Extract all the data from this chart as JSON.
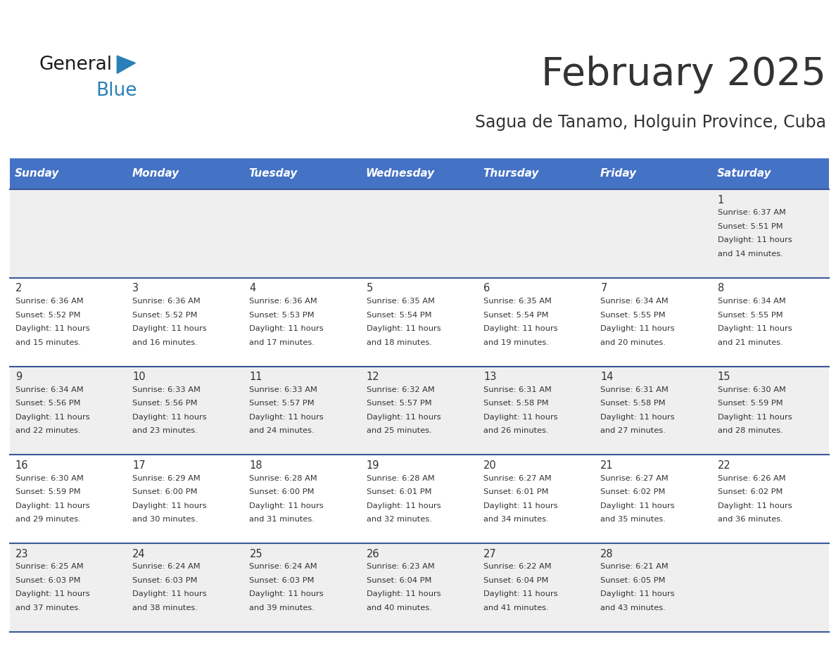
{
  "title": "February 2025",
  "subtitle": "Sagua de Tanamo, Holguin Province, Cuba",
  "header_bg": "#4472C4",
  "header_text": "#FFFFFF",
  "row_bg_odd": "#EFEFEF",
  "row_bg_even": "#FFFFFF",
  "text_color": "#333333",
  "day_number_color": "#333333",
  "separator_color": "#3B5998",
  "days_of_week": [
    "Sunday",
    "Monday",
    "Tuesday",
    "Wednesday",
    "Thursday",
    "Friday",
    "Saturday"
  ],
  "calendar": [
    [
      {
        "day": "",
        "info": ""
      },
      {
        "day": "",
        "info": ""
      },
      {
        "day": "",
        "info": ""
      },
      {
        "day": "",
        "info": ""
      },
      {
        "day": "",
        "info": ""
      },
      {
        "day": "",
        "info": ""
      },
      {
        "day": "1",
        "info": "Sunrise: 6:37 AM\nSunset: 5:51 PM\nDaylight: 11 hours\nand 14 minutes."
      }
    ],
    [
      {
        "day": "2",
        "info": "Sunrise: 6:36 AM\nSunset: 5:52 PM\nDaylight: 11 hours\nand 15 minutes."
      },
      {
        "day": "3",
        "info": "Sunrise: 6:36 AM\nSunset: 5:52 PM\nDaylight: 11 hours\nand 16 minutes."
      },
      {
        "day": "4",
        "info": "Sunrise: 6:36 AM\nSunset: 5:53 PM\nDaylight: 11 hours\nand 17 minutes."
      },
      {
        "day": "5",
        "info": "Sunrise: 6:35 AM\nSunset: 5:54 PM\nDaylight: 11 hours\nand 18 minutes."
      },
      {
        "day": "6",
        "info": "Sunrise: 6:35 AM\nSunset: 5:54 PM\nDaylight: 11 hours\nand 19 minutes."
      },
      {
        "day": "7",
        "info": "Sunrise: 6:34 AM\nSunset: 5:55 PM\nDaylight: 11 hours\nand 20 minutes."
      },
      {
        "day": "8",
        "info": "Sunrise: 6:34 AM\nSunset: 5:55 PM\nDaylight: 11 hours\nand 21 minutes."
      }
    ],
    [
      {
        "day": "9",
        "info": "Sunrise: 6:34 AM\nSunset: 5:56 PM\nDaylight: 11 hours\nand 22 minutes."
      },
      {
        "day": "10",
        "info": "Sunrise: 6:33 AM\nSunset: 5:56 PM\nDaylight: 11 hours\nand 23 minutes."
      },
      {
        "day": "11",
        "info": "Sunrise: 6:33 AM\nSunset: 5:57 PM\nDaylight: 11 hours\nand 24 minutes."
      },
      {
        "day": "12",
        "info": "Sunrise: 6:32 AM\nSunset: 5:57 PM\nDaylight: 11 hours\nand 25 minutes."
      },
      {
        "day": "13",
        "info": "Sunrise: 6:31 AM\nSunset: 5:58 PM\nDaylight: 11 hours\nand 26 minutes."
      },
      {
        "day": "14",
        "info": "Sunrise: 6:31 AM\nSunset: 5:58 PM\nDaylight: 11 hours\nand 27 minutes."
      },
      {
        "day": "15",
        "info": "Sunrise: 6:30 AM\nSunset: 5:59 PM\nDaylight: 11 hours\nand 28 minutes."
      }
    ],
    [
      {
        "day": "16",
        "info": "Sunrise: 6:30 AM\nSunset: 5:59 PM\nDaylight: 11 hours\nand 29 minutes."
      },
      {
        "day": "17",
        "info": "Sunrise: 6:29 AM\nSunset: 6:00 PM\nDaylight: 11 hours\nand 30 minutes."
      },
      {
        "day": "18",
        "info": "Sunrise: 6:28 AM\nSunset: 6:00 PM\nDaylight: 11 hours\nand 31 minutes."
      },
      {
        "day": "19",
        "info": "Sunrise: 6:28 AM\nSunset: 6:01 PM\nDaylight: 11 hours\nand 32 minutes."
      },
      {
        "day": "20",
        "info": "Sunrise: 6:27 AM\nSunset: 6:01 PM\nDaylight: 11 hours\nand 34 minutes."
      },
      {
        "day": "21",
        "info": "Sunrise: 6:27 AM\nSunset: 6:02 PM\nDaylight: 11 hours\nand 35 minutes."
      },
      {
        "day": "22",
        "info": "Sunrise: 6:26 AM\nSunset: 6:02 PM\nDaylight: 11 hours\nand 36 minutes."
      }
    ],
    [
      {
        "day": "23",
        "info": "Sunrise: 6:25 AM\nSunset: 6:03 PM\nDaylight: 11 hours\nand 37 minutes."
      },
      {
        "day": "24",
        "info": "Sunrise: 6:24 AM\nSunset: 6:03 PM\nDaylight: 11 hours\nand 38 minutes."
      },
      {
        "day": "25",
        "info": "Sunrise: 6:24 AM\nSunset: 6:03 PM\nDaylight: 11 hours\nand 39 minutes."
      },
      {
        "day": "26",
        "info": "Sunrise: 6:23 AM\nSunset: 6:04 PM\nDaylight: 11 hours\nand 40 minutes."
      },
      {
        "day": "27",
        "info": "Sunrise: 6:22 AM\nSunset: 6:04 PM\nDaylight: 11 hours\nand 41 minutes."
      },
      {
        "day": "28",
        "info": "Sunrise: 6:21 AM\nSunset: 6:05 PM\nDaylight: 11 hours\nand 43 minutes."
      },
      {
        "day": "",
        "info": ""
      }
    ]
  ],
  "logo_general_color": "#1a1a1a",
  "logo_blue_color": "#2980B9",
  "logo_triangle_color": "#2980B9",
  "fig_width": 11.88,
  "fig_height": 9.18,
  "dpi": 100
}
